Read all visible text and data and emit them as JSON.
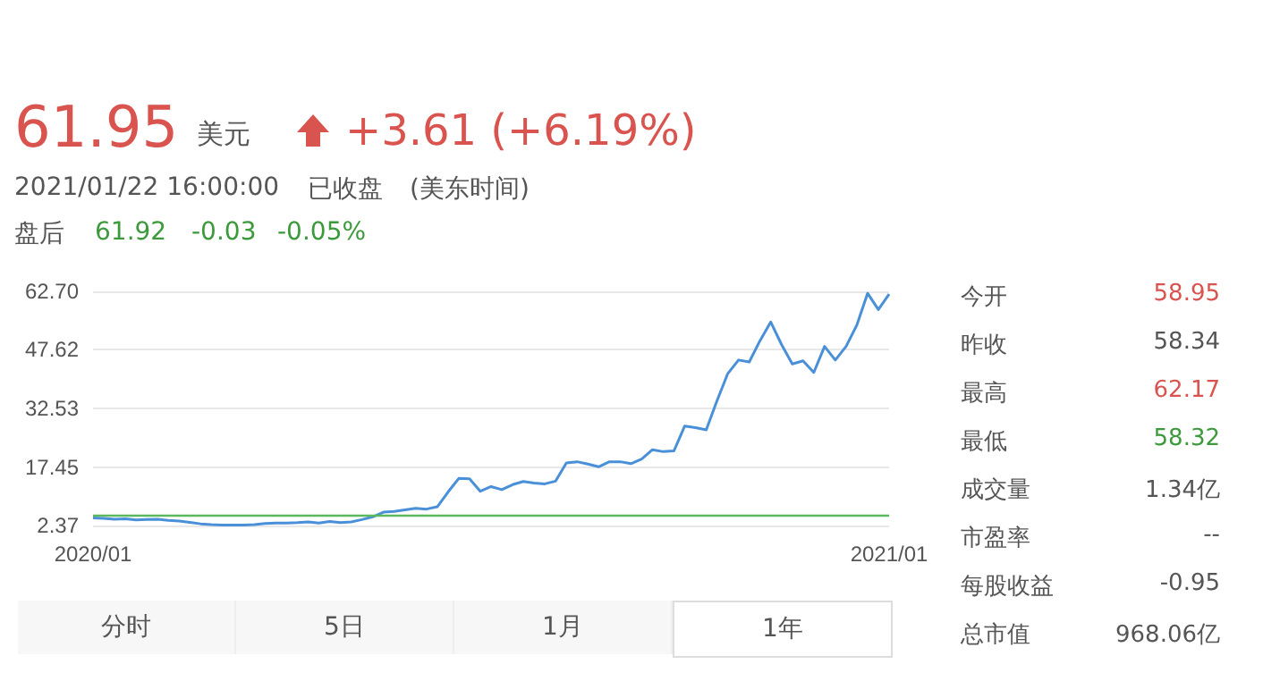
{
  "chart_data": {
    "type": "line",
    "title": "61.95",
    "annotations": [
      "美元",
      "+3.61 (+6.19%)",
      "2021/01/22 16:00:00",
      "已收盘",
      "(美东时间)",
      "盘后",
      "61.92",
      "-0.03",
      "-0.05%",
      "今开",
      "58.95",
      "昨收",
      "58.34",
      "最高",
      "62.17",
      "最低",
      "58.32",
      "成交量",
      "1.34亿",
      "市盈率",
      "--",
      "每股收益",
      "-0.95",
      "总市值",
      "968.06亿",
      "分时",
      "5日",
      "1月",
      "1年"
    ],
    "categories": [
      "2020/01",
      null,
      null,
      null,
      null,
      null,
      null,
      null,
      null,
      null,
      null,
      null,
      null,
      null,
      null,
      null,
      null,
      null,
      null,
      null,
      null,
      null,
      null,
      null,
      null,
      null,
      null,
      null,
      null,
      null,
      null,
      null,
      null,
      null,
      null,
      null,
      null,
      null,
      null,
      null,
      null,
      null,
      null,
      null,
      null,
      null,
      null,
      null,
      null,
      null,
      null,
      null,
      null,
      null,
      null,
      null,
      null,
      null,
      null,
      null,
      null,
      null,
      null,
      null,
      null,
      null,
      null,
      null,
      null,
      null,
      null,
      null,
      null,
      null,
      "2021/01"
    ],
    "series": [
      {
        "color": "#4a90d9",
        "values": [
          4.3,
          4.2,
          4.0,
          4.1,
          3.8,
          3.9,
          4.0,
          3.7,
          3.5,
          3.2,
          2.8,
          2.6,
          2.5,
          2.5,
          2.5,
          2.6,
          2.9,
          3.0,
          3.0,
          3.1,
          3.3,
          3.0,
          3.4,
          3.1,
          3.3,
          3.9,
          4.6,
          5.8,
          6.0,
          6.4,
          6.8,
          6.6,
          7.2,
          11.0,
          14.5,
          14.4,
          11.2,
          12.4,
          11.6,
          12.9,
          13.7,
          13.3,
          13.1,
          13.8,
          18.5,
          18.8,
          18.2,
          17.5,
          18.8,
          18.8,
          18.3,
          19.5,
          21.9,
          21.4,
          21.6,
          28.0,
          27.6,
          27.0,
          34.5,
          41.5,
          45.0,
          44.5,
          50.0,
          54.8,
          49.0,
          44.0,
          44.8,
          41.8,
          48.5,
          45.0,
          48.5,
          54.0,
          62.2,
          58.0,
          62.0
        ]
      }
    ],
    "ylim": [
      2.37,
      62.7
    ],
    "yticks": [
      2.37,
      17.45,
      32.53,
      47.62,
      {
        "value": 62.7,
        "label": "62.70"
      }
    ],
    "grid": "y",
    "marker": "none",
    "ref_lines": [
      {
        "axis": "y",
        "value": 4.8,
        "color": "#5cb85c"
      }
    ]
  }
}
